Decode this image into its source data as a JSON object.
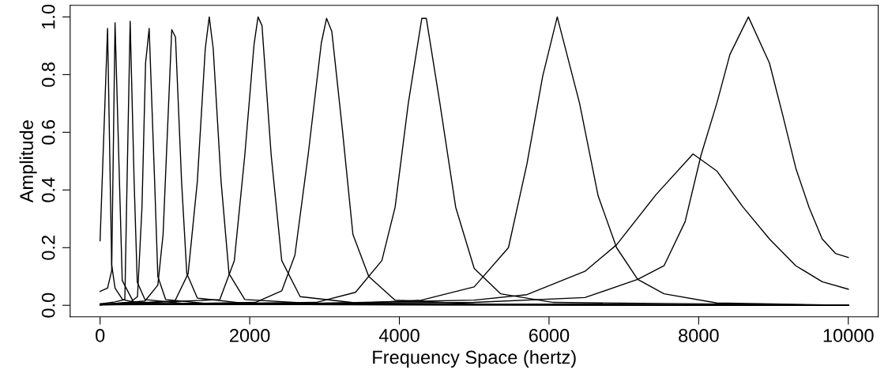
{
  "chart_data": {
    "type": "line",
    "xlabel": "Frequency Space (hertz)",
    "ylabel": "Amplitude",
    "xlim": [
      -400,
      10400
    ],
    "ylim": [
      -0.04,
      1.04
    ],
    "xticks": [
      0,
      2000,
      4000,
      6000,
      8000,
      10000
    ],
    "yticks": [
      {
        "value": 0,
        "label": "0.0"
      },
      {
        "value": 0.2,
        "label": "0.2"
      },
      {
        "value": 0.4,
        "label": "0.4"
      },
      {
        "value": 0.6,
        "label": "0.6"
      },
      {
        "value": 0.8,
        "label": "0.8"
      },
      {
        "value": 1,
        "label": "1.0"
      }
    ],
    "grid": false,
    "marker": "none",
    "line_style": "solid",
    "series": [
      {
        "color": "#000000",
        "x": [
          0,
          100,
          155,
          200,
          300,
          500,
          1000,
          10000
        ],
        "values": [
          0.224,
          0.96,
          0.14,
          0.06,
          0.02,
          0.008,
          0.003,
          0
        ]
      },
      {
        "color": "#000000",
        "x": [
          0,
          100,
          155,
          200,
          296,
          450,
          1000,
          10000
        ],
        "values": [
          0.048,
          0.06,
          0.12,
          0.98,
          0.086,
          0.01,
          0.003,
          0
        ]
      },
      {
        "color": "#000000",
        "x": [
          0,
          200,
          331,
          354,
          402,
          455,
          497,
          600,
          1200,
          10000
        ],
        "values": [
          0.005,
          0.012,
          0.02,
          0.34,
          0.985,
          0.43,
          0.08,
          0.02,
          0.004,
          0
        ]
      },
      {
        "color": "#000000",
        "x": [
          0,
          400,
          500,
          560,
          608,
          656,
          729,
          772,
          877,
          1500,
          10000
        ],
        "values": [
          0.003,
          0.01,
          0.03,
          0.34,
          0.84,
          0.96,
          0.43,
          0.1,
          0.02,
          0.004,
          0
        ]
      },
      {
        "color": "#000000",
        "x": [
          0,
          600,
          772,
          842,
          958,
          1008,
          1089,
          1159,
          1300,
          2000,
          10000
        ],
        "values": [
          0.002,
          0.015,
          0.07,
          0.246,
          0.956,
          0.93,
          0.43,
          0.11,
          0.025,
          0.005,
          0
        ]
      },
      {
        "color": "#000000",
        "x": [
          0,
          1000,
          1177,
          1300,
          1406,
          1459,
          1512,
          1617,
          1723,
          1934,
          3000,
          10000
        ],
        "values": [
          0.002,
          0.015,
          0.11,
          0.43,
          0.89,
          1.0,
          0.89,
          0.43,
          0.11,
          0.02,
          0.004,
          0
        ]
      },
      {
        "color": "#000000",
        "x": [
          0,
          1600,
          1794,
          1934,
          2058,
          2111,
          2164,
          2287,
          2428,
          2674,
          3500,
          10000
        ],
        "values": [
          0.002,
          0.02,
          0.155,
          0.52,
          0.905,
          1.0,
          0.97,
          0.52,
          0.155,
          0.03,
          0.006,
          0
        ]
      },
      {
        "color": "#000000",
        "x": [
          0,
          2075,
          2428,
          2604,
          2780,
          2957,
          3027,
          3097,
          3238,
          3379,
          3591,
          3943,
          5000,
          10000
        ],
        "values": [
          0.002,
          0.01,
          0.05,
          0.174,
          0.52,
          0.91,
          0.995,
          0.95,
          0.61,
          0.246,
          0.1,
          0.018,
          0.005,
          0
        ]
      },
      {
        "color": "#000000",
        "x": [
          0,
          2886,
          3414,
          3766,
          3943,
          4119,
          4300,
          4360,
          4542,
          4753,
          5000,
          5352,
          6057,
          10000
        ],
        "values": [
          0.002,
          0.01,
          0.045,
          0.155,
          0.34,
          0.7,
          0.995,
          0.995,
          0.7,
          0.34,
          0.128,
          0.04,
          0.01,
          0
        ]
      },
      {
        "color": "#000000",
        "x": [
          0,
          3250,
          4295,
          5000,
          5458,
          5705,
          5916,
          6110,
          6409,
          6656,
          6903,
          7185,
          7537,
          8242,
          10000
        ],
        "values": [
          0.002,
          0.005,
          0.018,
          0.064,
          0.2,
          0.49,
          0.795,
          1.0,
          0.7,
          0.38,
          0.2,
          0.09,
          0.04,
          0.008,
          0
        ]
      },
      {
        "color": "#000000",
        "x": [
          0,
          2886,
          5000,
          5705,
          6480,
          6903,
          7431,
          7925,
          8242,
          8594,
          8946,
          9299,
          9651,
          10000
        ],
        "values": [
          0.005,
          0.007,
          0.018,
          0.037,
          0.118,
          0.21,
          0.384,
          0.525,
          0.466,
          0.34,
          0.23,
          0.137,
          0.082,
          0.056
        ]
      },
      {
        "color": "#000000",
        "x": [
          0,
          5000,
          6480,
          7185,
          7537,
          7819,
          8031,
          8242,
          8418,
          8665,
          8946,
          9123,
          9299,
          9475,
          9651,
          9828,
          10000
        ],
        "values": [
          0.003,
          0.01,
          0.027,
          0.09,
          0.137,
          0.29,
          0.52,
          0.7,
          0.87,
          1.0,
          0.84,
          0.66,
          0.475,
          0.34,
          0.23,
          0.18,
          0.166
        ]
      }
    ]
  }
}
